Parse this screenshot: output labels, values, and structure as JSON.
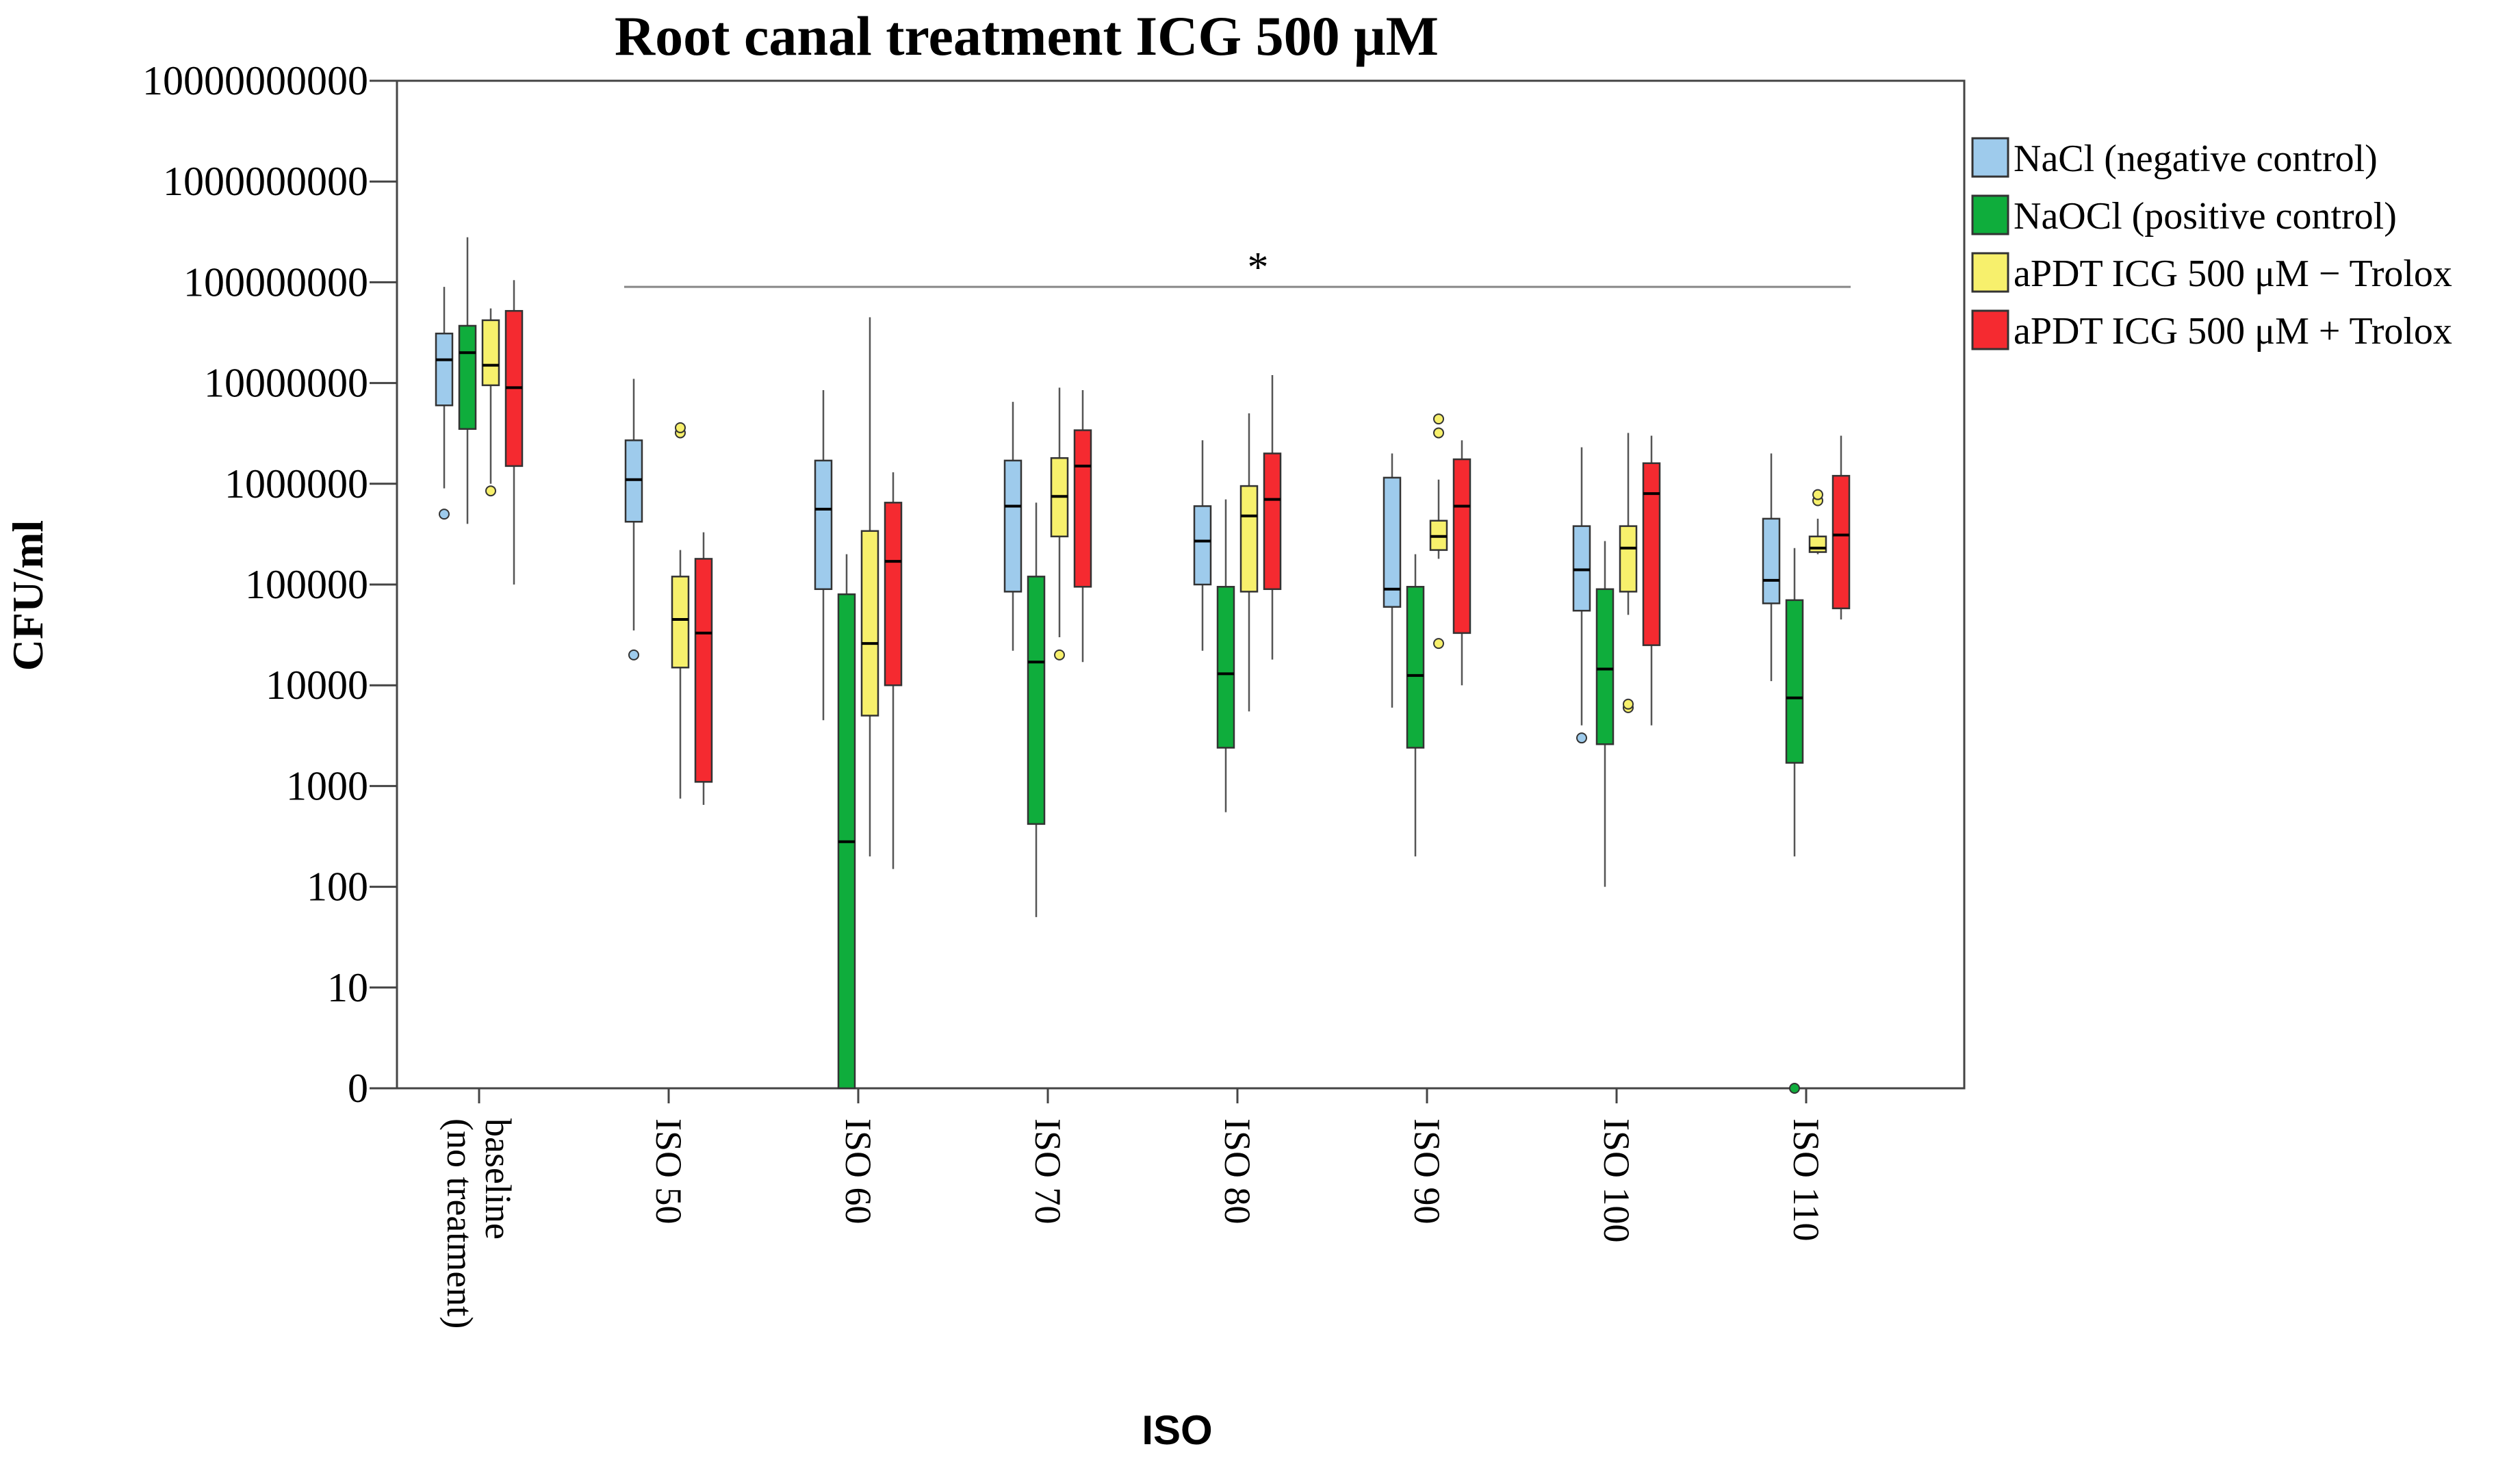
{
  "chart_data": {
    "type": "box",
    "title": "Root canal treatment ICG 500 μM",
    "xlabel": "ISO",
    "ylabel": "CFU/ml",
    "y_scale": "log",
    "y_ticks": [
      {
        "value": 0,
        "label": "0"
      },
      {
        "value": 10,
        "label": "10"
      },
      {
        "value": 100,
        "label": "100"
      },
      {
        "value": 1000,
        "label": "1000"
      },
      {
        "value": 10000,
        "label": "10000"
      },
      {
        "value": 100000,
        "label": "100000"
      },
      {
        "value": 1000000,
        "label": "1000000"
      },
      {
        "value": 10000000,
        "label": "10000000"
      },
      {
        "value": 100000000,
        "label": "100000000"
      },
      {
        "value": 1000000000,
        "label": "1000000000"
      },
      {
        "value": 10000000000,
        "label": "10000000000"
      }
    ],
    "categories": [
      {
        "label": "baseline (no treatment)",
        "lines": [
          "baseline",
          "(no treatment)"
        ]
      },
      {
        "label": "ISO 50",
        "lines": [
          "ISO 50"
        ]
      },
      {
        "label": "ISO 60",
        "lines": [
          "ISO 60"
        ]
      },
      {
        "label": "ISO 70",
        "lines": [
          "ISO 70"
        ]
      },
      {
        "label": "ISO 80",
        "lines": [
          "ISO 80"
        ]
      },
      {
        "label": "ISO 90",
        "lines": [
          "ISO 90"
        ]
      },
      {
        "label": "ISO 100",
        "lines": [
          "ISO 100"
        ]
      },
      {
        "label": "ISO 110",
        "lines": [
          "ISO 110"
        ]
      }
    ],
    "significance": {
      "label": "*",
      "from_category": "ISO 50",
      "to_category": "ISO 110",
      "y_value": 90000000
    },
    "series": [
      {
        "name": "NaCl (negative control)",
        "color": "#9ecbec",
        "boxes": [
          {
            "whisker_low": 900000,
            "q1": 6000000,
            "median": 17000000,
            "q3": 31000000,
            "whisker_high": 90000000,
            "outliers": [
              500000
            ]
          },
          {
            "whisker_low": 35000,
            "q1": 420000,
            "median": 1100000,
            "q3": 2700000,
            "whisker_high": 11000000,
            "outliers": [
              20000
            ]
          },
          {
            "whisker_low": 4500,
            "q1": 90000,
            "median": 560000,
            "q3": 1700000,
            "whisker_high": 8500000,
            "outliers": []
          },
          {
            "whisker_low": 22000,
            "q1": 85000,
            "median": 600000,
            "q3": 1700000,
            "whisker_high": 6500000,
            "outliers": []
          },
          {
            "whisker_low": 22000,
            "q1": 100000,
            "median": 270000,
            "q3": 600000,
            "whisker_high": 2700000,
            "outliers": []
          },
          {
            "whisker_low": 6000,
            "q1": 60000,
            "median": 90000,
            "q3": 1150000,
            "whisker_high": 2000000,
            "outliers": []
          },
          {
            "whisker_low": 4000,
            "q1": 55000,
            "median": 140000,
            "q3": 380000,
            "whisker_high": 2300000,
            "outliers": [
              3000
            ]
          },
          {
            "whisker_low": 11000,
            "q1": 65000,
            "median": 110000,
            "q3": 450000,
            "whisker_high": 2000000,
            "outliers": []
          }
        ]
      },
      {
        "name": "NaOCl (positive control)",
        "color": "#0fad3c",
        "boxes": [
          {
            "whisker_low": 400000,
            "q1": 3500000,
            "median": 20000000,
            "q3": 37000000,
            "whisker_high": 280000000,
            "outliers": []
          },
          null,
          {
            "whisker_low": 0,
            "q1": 0,
            "median": 280,
            "q3": 80000,
            "whisker_high": 200000,
            "outliers": []
          },
          {
            "whisker_low": 50,
            "q1": 420,
            "median": 17000,
            "q3": 120000,
            "whisker_high": 650000,
            "outliers": []
          },
          {
            "whisker_low": 550,
            "q1": 2400,
            "median": 13000,
            "q3": 95000,
            "whisker_high": 700000,
            "outliers": []
          },
          {
            "whisker_low": 200,
            "q1": 2400,
            "median": 12500,
            "q3": 95000,
            "whisker_high": 200000,
            "outliers": []
          },
          {
            "whisker_low": 100,
            "q1": 2600,
            "median": 14500,
            "q3": 90000,
            "whisker_high": 270000,
            "outliers": []
          },
          {
            "whisker_low": 200,
            "q1": 1700,
            "median": 7500,
            "q3": 70000,
            "whisker_high": 230000,
            "outliers": [
              0
            ]
          }
        ]
      },
      {
        "name": "aPDT ICG 500 μM − Trolox",
        "color": "#f7f06c",
        "boxes": [
          {
            "whisker_low": 1000000,
            "q1": 9500000,
            "median": 15000000,
            "q3": 42000000,
            "whisker_high": 55000000,
            "outliers": [
              850000
            ]
          },
          {
            "whisker_low": 750,
            "q1": 15000,
            "median": 45000,
            "q3": 120000,
            "whisker_high": 220000,
            "outliers": [
              3200000,
              3600000
            ]
          },
          {
            "whisker_low": 200,
            "q1": 5000,
            "median": 26000,
            "q3": 340000,
            "whisker_high": 45000000,
            "outliers": []
          },
          {
            "whisker_low": 30000,
            "q1": 300000,
            "median": 750000,
            "q3": 1800000,
            "whisker_high": 9000000,
            "outliers": [
              20000
            ]
          },
          {
            "whisker_low": 5500,
            "q1": 85000,
            "median": 480000,
            "q3": 950000,
            "whisker_high": 5000000,
            "outliers": []
          },
          {
            "whisker_low": 180000,
            "q1": 220000,
            "median": 300000,
            "q3": 430000,
            "whisker_high": 1100000,
            "outliers": [
              3200000,
              4400000,
              26000
            ]
          },
          {
            "whisker_low": 50000,
            "q1": 85000,
            "median": 230000,
            "q3": 380000,
            "whisker_high": 3200000,
            "outliers": [
              6000,
              6500
            ]
          },
          {
            "whisker_low": 200000,
            "q1": 210000,
            "median": 230000,
            "q3": 300000,
            "whisker_high": 450000,
            "outliers": [
              680000,
              780000
            ]
          }
        ]
      },
      {
        "name": "aPDT ICG 500 μM + Trolox",
        "color": "#f52a30",
        "boxes": [
          {
            "whisker_low": 100000,
            "q1": 1500000,
            "median": 9000000,
            "q3": 52000000,
            "whisker_high": 105000000,
            "outliers": []
          },
          {
            "whisker_low": 650,
            "q1": 1100,
            "median": 33000,
            "q3": 180000,
            "whisker_high": 330000,
            "outliers": []
          },
          {
            "whisker_low": 150,
            "q1": 10000,
            "median": 170000,
            "q3": 650000,
            "whisker_high": 1300000,
            "outliers": []
          },
          {
            "whisker_low": 17000,
            "q1": 95000,
            "median": 1500000,
            "q3": 3400000,
            "whisker_high": 8500000,
            "outliers": []
          },
          {
            "whisker_low": 18000,
            "q1": 90000,
            "median": 700000,
            "q3": 2000000,
            "whisker_high": 12000000,
            "outliers": []
          },
          {
            "whisker_low": 10000,
            "q1": 33000,
            "median": 600000,
            "q3": 1750000,
            "whisker_high": 2700000,
            "outliers": []
          },
          {
            "whisker_low": 4000,
            "q1": 25000,
            "median": 800000,
            "q3": 1600000,
            "whisker_high": 3000000,
            "outliers": []
          },
          {
            "whisker_low": 45000,
            "q1": 58000,
            "median": 310000,
            "q3": 1200000,
            "whisker_high": 3000000,
            "outliers": []
          }
        ]
      }
    ],
    "legend": {
      "placement": "right"
    }
  }
}
